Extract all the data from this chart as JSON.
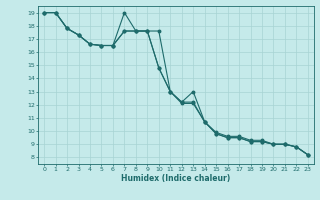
{
  "xlabel": "Humidex (Indice chaleur)",
  "xlim": [
    -0.5,
    23.5
  ],
  "ylim": [
    7.5,
    19.5
  ],
  "xticks": [
    0,
    1,
    2,
    3,
    4,
    5,
    6,
    7,
    8,
    9,
    10,
    11,
    12,
    13,
    14,
    15,
    16,
    17,
    18,
    19,
    20,
    21,
    22,
    23
  ],
  "yticks": [
    8,
    9,
    10,
    11,
    12,
    13,
    14,
    15,
    16,
    17,
    18,
    19
  ],
  "bg_color": "#c5eaea",
  "grid_color": "#a8d4d4",
  "line_color": "#1e6b6b",
  "line1_x": [
    0,
    1,
    2,
    3,
    4,
    5,
    6,
    7,
    8,
    9,
    10,
    11,
    12,
    13,
    14,
    15,
    16,
    17,
    18,
    19,
    20,
    21,
    22,
    23
  ],
  "line1_y": [
    19.0,
    19.0,
    17.8,
    17.3,
    16.6,
    16.5,
    16.5,
    19.0,
    17.6,
    17.6,
    14.8,
    13.0,
    12.2,
    13.0,
    10.7,
    9.9,
    9.6,
    9.6,
    9.3,
    9.3,
    9.0,
    9.0,
    8.8,
    8.2
  ],
  "line2_x": [
    0,
    1,
    2,
    3,
    4,
    5,
    6,
    7,
    8,
    9,
    10,
    11,
    12,
    13,
    14,
    15,
    16,
    17,
    18,
    19,
    20,
    21,
    22,
    23
  ],
  "line2_y": [
    19.0,
    19.0,
    17.8,
    17.3,
    16.6,
    16.5,
    16.5,
    17.6,
    17.6,
    17.6,
    17.6,
    13.0,
    12.2,
    12.2,
    10.7,
    9.8,
    9.5,
    9.5,
    9.2,
    9.2,
    9.0,
    9.0,
    8.8,
    8.2
  ],
  "line3_x": [
    0,
    1,
    2,
    3,
    4,
    5,
    6,
    7,
    8,
    9,
    10,
    11,
    12,
    13,
    14,
    15,
    16,
    17,
    18,
    19,
    20,
    21,
    22,
    23
  ],
  "line3_y": [
    19.0,
    19.0,
    17.8,
    17.3,
    16.6,
    16.5,
    16.5,
    17.6,
    17.6,
    17.6,
    14.8,
    13.0,
    12.1,
    12.1,
    10.7,
    9.8,
    9.5,
    9.5,
    9.2,
    9.2,
    9.0,
    9.0,
    8.8,
    8.2
  ]
}
